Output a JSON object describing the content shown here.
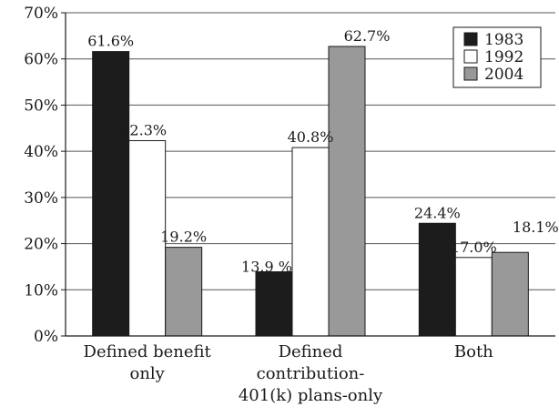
{
  "chart_data": {
    "type": "bar",
    "title": "",
    "xlabel": "",
    "ylabel": "",
    "ylim": [
      0,
      70
    ],
    "yticks": [
      "0%",
      "10%",
      "20%",
      "30%",
      "40%",
      "50%",
      "60%",
      "70%"
    ],
    "ytick_values": [
      0,
      10,
      20,
      30,
      40,
      50,
      60,
      70
    ],
    "categories": [
      [
        "Defined benefit",
        "only"
      ],
      [
        "Defined",
        "contribution-",
        "401(k) plans-only"
      ],
      [
        "Both"
      ]
    ],
    "series": [
      {
        "name": "1983",
        "color": "#1c1c1c",
        "values": [
          61.6,
          13.9,
          24.4
        ],
        "labels": [
          "61.6%",
          "13.9 %",
          "24.4%"
        ]
      },
      {
        "name": "1992",
        "color": "#ffffff",
        "values": [
          42.3,
          40.8,
          17.0
        ],
        "labels": [
          "42.3%",
          "40.8%",
          "17.0%"
        ]
      },
      {
        "name": "2004",
        "color": "#999999",
        "values": [
          19.2,
          62.7,
          18.1
        ],
        "labels": [
          "19.2%",
          "62.7%",
          "18.1%"
        ]
      }
    ],
    "grid": true,
    "legend_position": "top-right"
  }
}
